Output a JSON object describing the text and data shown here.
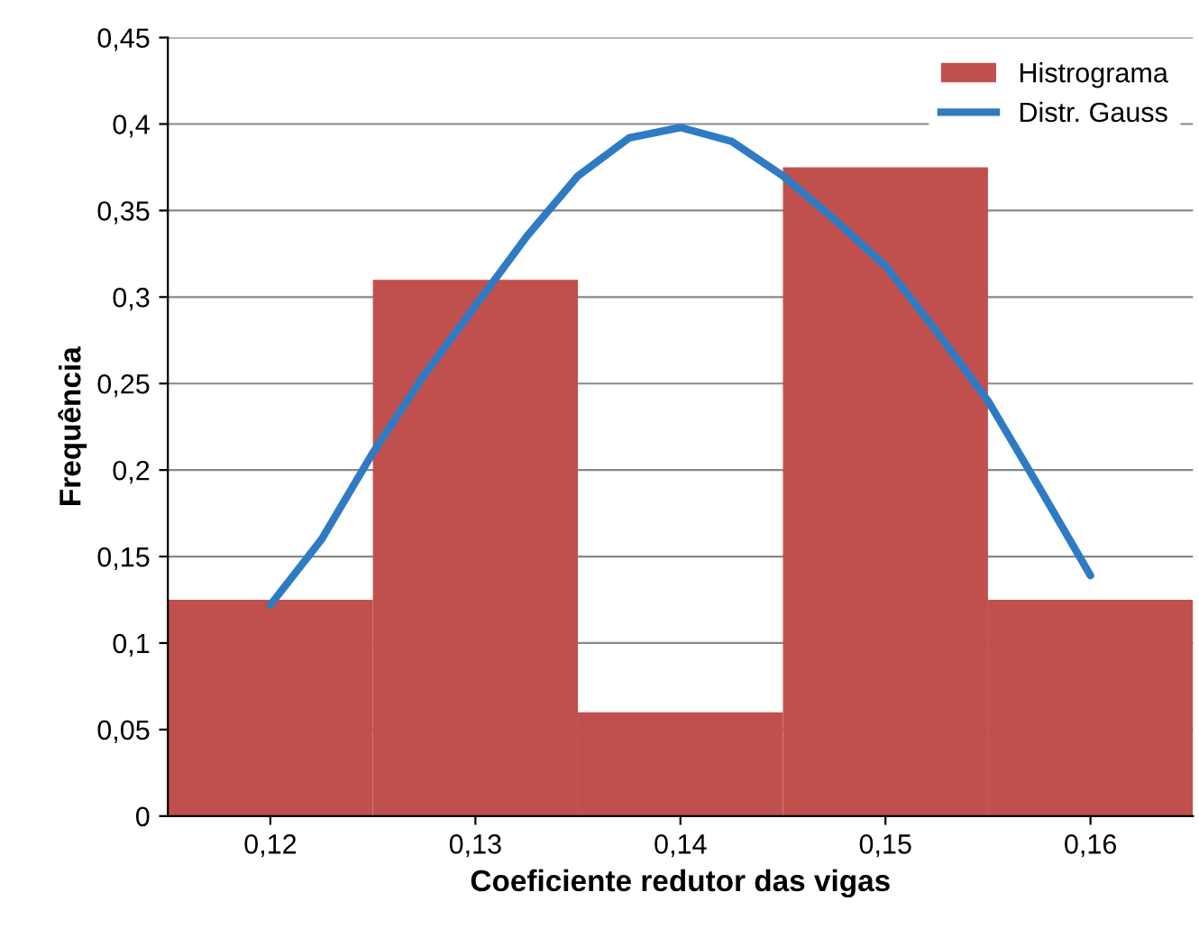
{
  "chart_data": {
    "type": "histogram",
    "xlabel": "Coeficiente redutor das vigas",
    "ylabel": "Frequência",
    "bins": [
      0.115,
      0.125,
      0.135,
      0.145,
      0.155,
      0.165
    ],
    "series": [
      {
        "name": "Histrograma",
        "color": "#c0504d",
        "values": [
          0.125,
          0.31,
          0.06,
          0.375,
          0.125
        ]
      },
      {
        "name": "Distr. Gauss",
        "type": "line",
        "color": "#2e7bc4",
        "x": [
          0.12,
          0.1225,
          0.125,
          0.1275,
          0.13,
          0.1325,
          0.135,
          0.1375,
          0.14,
          0.1425,
          0.145,
          0.1475,
          0.15,
          0.1525,
          0.155,
          0.1575,
          0.16
        ],
        "values": [
          0.122,
          0.16,
          0.21,
          0.255,
          0.295,
          0.335,
          0.37,
          0.392,
          0.398,
          0.39,
          0.37,
          0.345,
          0.318,
          0.28,
          0.24,
          0.19,
          0.139
        ]
      }
    ],
    "xlim": [
      0.115,
      0.165
    ],
    "xticks": [
      {
        "value": 0.12,
        "label": "0,12"
      },
      {
        "value": 0.13,
        "label": "0,13"
      },
      {
        "value": 0.14,
        "label": "0,14"
      },
      {
        "value": 0.15,
        "label": "0,15"
      },
      {
        "value": 0.16,
        "label": "0,16"
      }
    ],
    "ylim": [
      0,
      0.45
    ],
    "yticks": [
      {
        "value": 0,
        "label": "0"
      },
      {
        "value": 0.05,
        "label": "0,05"
      },
      {
        "value": 0.1,
        "label": "0,1"
      },
      {
        "value": 0.15,
        "label": "0,15"
      },
      {
        "value": 0.2,
        "label": "0,2"
      },
      {
        "value": 0.25,
        "label": "0,25"
      },
      {
        "value": 0.3,
        "label": "0,3"
      },
      {
        "value": 0.35,
        "label": "0,35"
      },
      {
        "value": 0.4,
        "label": "0,4"
      },
      {
        "value": 0.45,
        "label": "0,45"
      }
    ],
    "grid": "y",
    "legend": "top right",
    "line_style": "solid",
    "marker": "none"
  }
}
